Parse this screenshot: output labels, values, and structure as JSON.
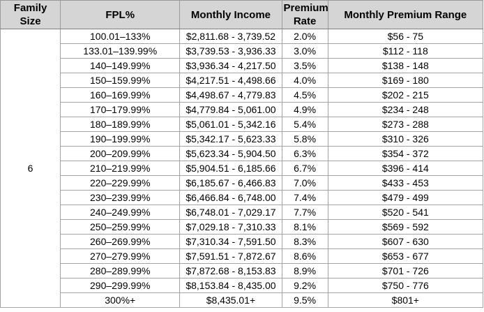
{
  "table": {
    "family_size": "6",
    "headers": [
      "Family Size",
      "FPL%",
      "Monthly Income",
      "Premium Rate",
      "Monthly Premium Range"
    ],
    "rows": [
      {
        "fpl": "100.01–133%",
        "income": "$2,811.68 - 3,739.52",
        "rate": "2.0%",
        "range": "$56 - 75"
      },
      {
        "fpl": "133.01–139.99%",
        "income": "$3,739.53 - 3,936.33",
        "rate": "3.0%",
        "range": "$112 - 118"
      },
      {
        "fpl": "140–149.99%",
        "income": "$3,936.34 - 4,217.50",
        "rate": "3.5%",
        "range": "$138 - 148"
      },
      {
        "fpl": "150–159.99%",
        "income": "$4,217.51 - 4,498.66",
        "rate": "4.0%",
        "range": "$169 - 180"
      },
      {
        "fpl": "160–169.99%",
        "income": "$4,498.67 - 4,779.83",
        "rate": "4.5%",
        "range": "$202 - 215"
      },
      {
        "fpl": "170–179.99%",
        "income": "$4,779.84 - 5,061.00",
        "rate": "4.9%",
        "range": "$234 - 248"
      },
      {
        "fpl": "180–189.99%",
        "income": "$5,061.01 - 5,342.16",
        "rate": "5.4%",
        "range": "$273 - 288"
      },
      {
        "fpl": "190–199.99%",
        "income": "$5,342.17 - 5,623.33",
        "rate": "5.8%",
        "range": "$310 - 326"
      },
      {
        "fpl": "200–209.99%",
        "income": "$5,623.34 - 5,904.50",
        "rate": "6.3%",
        "range": "$354 - 372"
      },
      {
        "fpl": "210–219.99%",
        "income": "$5,904.51 - 6,185.66",
        "rate": "6.7%",
        "range": "$396 - 414"
      },
      {
        "fpl": "220–229.99%",
        "income": "$6,185.67 - 6,466.83",
        "rate": "7.0%",
        "range": "$433 - 453"
      },
      {
        "fpl": "230–239.99%",
        "income": "$6,466.84 - 6,748.00",
        "rate": "7.4%",
        "range": "$479 - 499"
      },
      {
        "fpl": "240–249.99%",
        "income": "$6,748.01 - 7,029.17",
        "rate": "7.7%",
        "range": "$520 - 541"
      },
      {
        "fpl": "250–259.99%",
        "income": "$7,029.18 - 7,310.33",
        "rate": "8.1%",
        "range": "$569 - 592"
      },
      {
        "fpl": "260–269.99%",
        "income": "$7,310.34 - 7,591.50",
        "rate": "8.3%",
        "range": "$607 - 630"
      },
      {
        "fpl": "270–279.99%",
        "income": "$7,591.51 - 7,872.67",
        "rate": "8.6%",
        "range": "$653 - 677"
      },
      {
        "fpl": "280–289.99%",
        "income": "$7,872.68 - 8,153.83",
        "rate": "8.9%",
        "range": "$701 - 726"
      },
      {
        "fpl": "290–299.99%",
        "income": "$8,153.84 - 8,435.00",
        "rate": "9.2%",
        "range": "$750 - 776"
      },
      {
        "fpl": "300%+",
        "income": "$8,435.01+",
        "rate": "9.5%",
        "range": "$801+"
      }
    ]
  },
  "colors": {
    "header_bg": "#d5d5d5",
    "grid_line": "#a3a3a3",
    "outer_border": "#7f7f7f",
    "text": "#000000"
  }
}
